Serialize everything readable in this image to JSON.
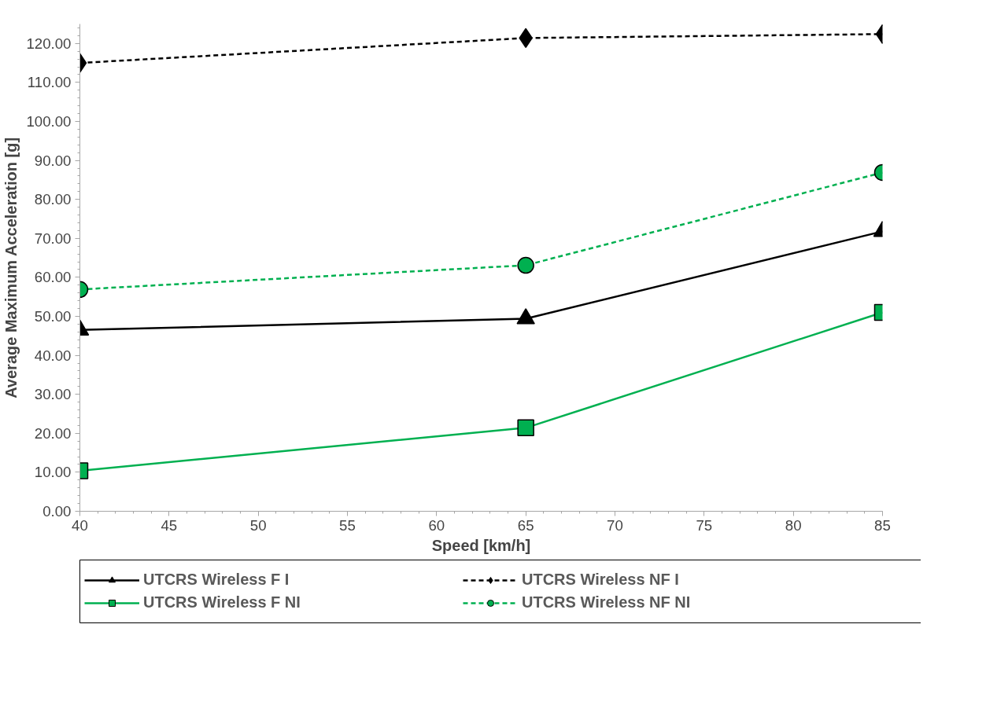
{
  "chart_data": {
    "type": "line",
    "xlabel": "Speed [km/h]",
    "ylabel": "Average Maximum Acceleration [g]",
    "x": [
      40,
      65,
      85
    ],
    "series": [
      {
        "name": "UTCRS Wireless F I",
        "color": "#000000",
        "marker": "triangle",
        "line_style": "solid",
        "values": [
          46.5,
          49.4,
          71.8
        ]
      },
      {
        "name": "UTCRS Wireless NF I",
        "color": "#000000",
        "marker": "diamond",
        "line_style": "dashed",
        "values": [
          115.0,
          121.4,
          122.4
        ]
      },
      {
        "name": "UTCRS Wireless F NI",
        "color": "#00b050",
        "marker": "square",
        "line_style": "solid",
        "values": [
          10.4,
          21.4,
          51.0
        ]
      },
      {
        "name": "UTCRS Wireless NF NI",
        "color": "#00b050",
        "marker": "circle",
        "line_style": "dashed",
        "values": [
          56.9,
          63.1,
          86.9
        ]
      }
    ],
    "xlim": [
      40,
      85
    ],
    "xticks": [
      40,
      45,
      50,
      55,
      60,
      65,
      70,
      75,
      80,
      85
    ],
    "ylim": [
      0,
      125
    ],
    "yticks": [
      {
        "value": 0,
        "label": "0.00"
      },
      {
        "value": 10,
        "label": "10.00"
      },
      {
        "value": 20,
        "label": "20.00"
      },
      {
        "value": 30,
        "label": "30.00"
      },
      {
        "value": 40,
        "label": "40.00"
      },
      {
        "value": 50,
        "label": "50.00"
      },
      {
        "value": 60,
        "label": "60.00"
      },
      {
        "value": 70,
        "label": "70.00"
      },
      {
        "value": 80,
        "label": "80.00"
      },
      {
        "value": 90,
        "label": "90.00"
      },
      {
        "value": 100,
        "label": "100.00"
      },
      {
        "value": 110,
        "label": "110.00"
      },
      {
        "value": 120,
        "label": "120.00"
      }
    ],
    "grid": false,
    "legend": "bottom"
  }
}
